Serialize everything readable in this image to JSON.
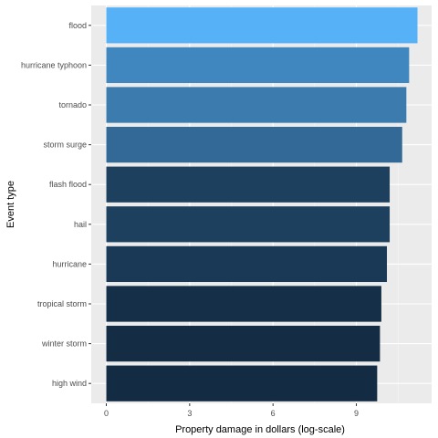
{
  "chart_data": {
    "type": "bar",
    "orientation": "horizontal",
    "categories": [
      "flood",
      "hurricane typhoon",
      "tornado",
      "storm surge",
      "flash flood",
      "hail",
      "hurricane",
      "tropical storm",
      "winter storm",
      "high wind"
    ],
    "values": [
      11.2,
      10.9,
      10.8,
      10.65,
      10.2,
      10.2,
      10.1,
      9.9,
      9.85,
      9.75
    ],
    "xlabel": "Property damage in dollars (log-scale)",
    "ylabel": "Event type",
    "xlim": [
      0,
      11.2
    ],
    "xticks": [
      0,
      3,
      6,
      9
    ],
    "grid": true,
    "colors": {
      "panel_bg": "#ebebeb",
      "grid_major": "#ffffff",
      "grid_minor": "#f5f5f5",
      "bar_low": "#132b43",
      "bar_high": "#56b1f7"
    }
  }
}
